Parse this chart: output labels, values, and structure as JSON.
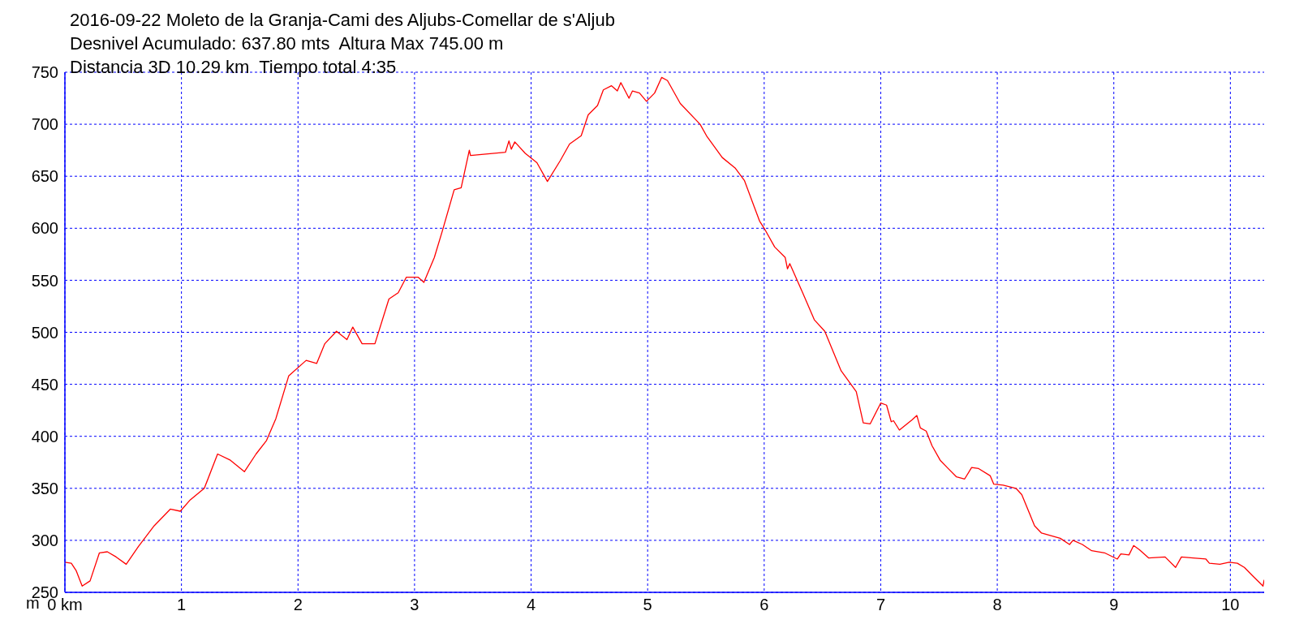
{
  "chart_data": {
    "type": "line",
    "title": "2016-09-22 Moleto de la Granja-Cami des Aljubs-Comellar de s'Aljub",
    "subtitle": "Desnivel Acumulado: 637.80 mts  Altura Max 745.00 m",
    "annotations": [
      "Distancia 3D 10.29 km  Tiempo total 4:35"
    ],
    "ylabel": "m",
    "x": [
      0,
      0.055,
      0.096,
      0.148,
      0.216,
      0.296,
      0.364,
      0.44,
      0.526,
      0.63,
      0.766,
      0.904,
      0.99,
      1.076,
      1.196,
      1.31,
      1.42,
      1.54,
      1.64,
      1.73,
      1.81,
      1.92,
      2.07,
      2.16,
      2.23,
      2.33,
      2.42,
      2.47,
      2.55,
      2.66,
      2.78,
      2.86,
      2.93,
      3.03,
      3.08,
      3.17,
      3.24,
      3.34,
      3.4,
      3.47,
      3.48,
      3.78,
      3.81,
      3.83,
      3.86,
      3.95,
      4.05,
      4.14,
      4.25,
      4.33,
      4.43,
      4.49,
      4.57,
      4.62,
      4.69,
      4.74,
      4.77,
      4.84,
      4.87,
      4.93,
      4.99,
      5.06,
      5.12,
      5.17,
      5.28,
      5.45,
      5.51,
      5.64,
      5.75,
      5.83,
      5.96,
      6.0,
      6.09,
      6.18,
      6.2,
      6.22,
      6.33,
      6.43,
      6.52,
      6.66,
      6.79,
      6.85,
      6.91,
      7.0,
      7.05,
      7.09,
      7.11,
      7.16,
      7.27,
      7.31,
      7.34,
      7.39,
      7.44,
      7.51,
      7.57,
      7.65,
      7.72,
      7.78,
      7.84,
      7.94,
      7.97,
      8.05,
      8.16,
      8.21,
      8.32,
      8.38,
      8.54,
      8.62,
      8.65,
      8.73,
      8.81,
      8.92,
      9.03,
      9.06,
      9.13,
      9.17,
      9.22,
      9.3,
      9.44,
      9.53,
      9.58,
      9.68,
      9.79,
      9.82,
      9.91,
      9.99,
      10.06,
      10.12,
      10.19,
      10.28,
      10.29
    ],
    "series": [
      {
        "color": "#ff0000",
        "values": [
          279,
          278,
          271,
          256,
          261,
          288,
          289,
          284,
          277,
          294,
          314,
          330,
          328,
          339,
          350,
          383,
          377,
          366,
          383,
          396,
          417,
          458,
          473,
          470,
          489,
          501,
          493,
          505,
          489,
          489,
          532,
          538,
          553,
          553,
          548,
          572,
          598,
          637,
          639,
          675,
          670,
          673,
          684,
          676,
          683,
          672,
          663,
          645,
          665,
          681,
          689,
          709,
          718,
          733,
          737,
          732,
          740,
          725,
          732,
          730,
          722,
          730,
          745,
          742,
          720,
          700,
          688,
          668,
          658,
          646,
          607,
          600,
          582,
          572,
          561,
          566,
          538,
          512,
          501,
          463,
          443,
          413,
          412,
          432,
          430,
          414,
          415,
          406,
          416,
          420,
          408,
          405,
          391,
          377,
          370,
          361,
          359,
          370,
          369,
          362,
          354,
          353,
          350,
          344,
          314,
          307,
          302,
          296,
          300,
          296,
          290,
          288,
          282,
          287,
          286,
          295,
          291,
          283,
          284,
          274,
          284,
          283,
          282,
          278,
          277,
          279,
          278,
          274,
          266,
          256,
          262
        ]
      }
    ],
    "xlim": [
      0,
      10.29
    ],
    "xticks": [
      {
        "value": 0,
        "label": "0 km"
      },
      1,
      2,
      3,
      4,
      5,
      6,
      7,
      8,
      9,
      10
    ],
    "ylim": [
      250,
      750
    ],
    "yticks": [
      250,
      300,
      350,
      400,
      450,
      500,
      550,
      600,
      650,
      700,
      750
    ],
    "grid": true,
    "marker": "none",
    "line_style": "solid",
    "legend": false
  }
}
